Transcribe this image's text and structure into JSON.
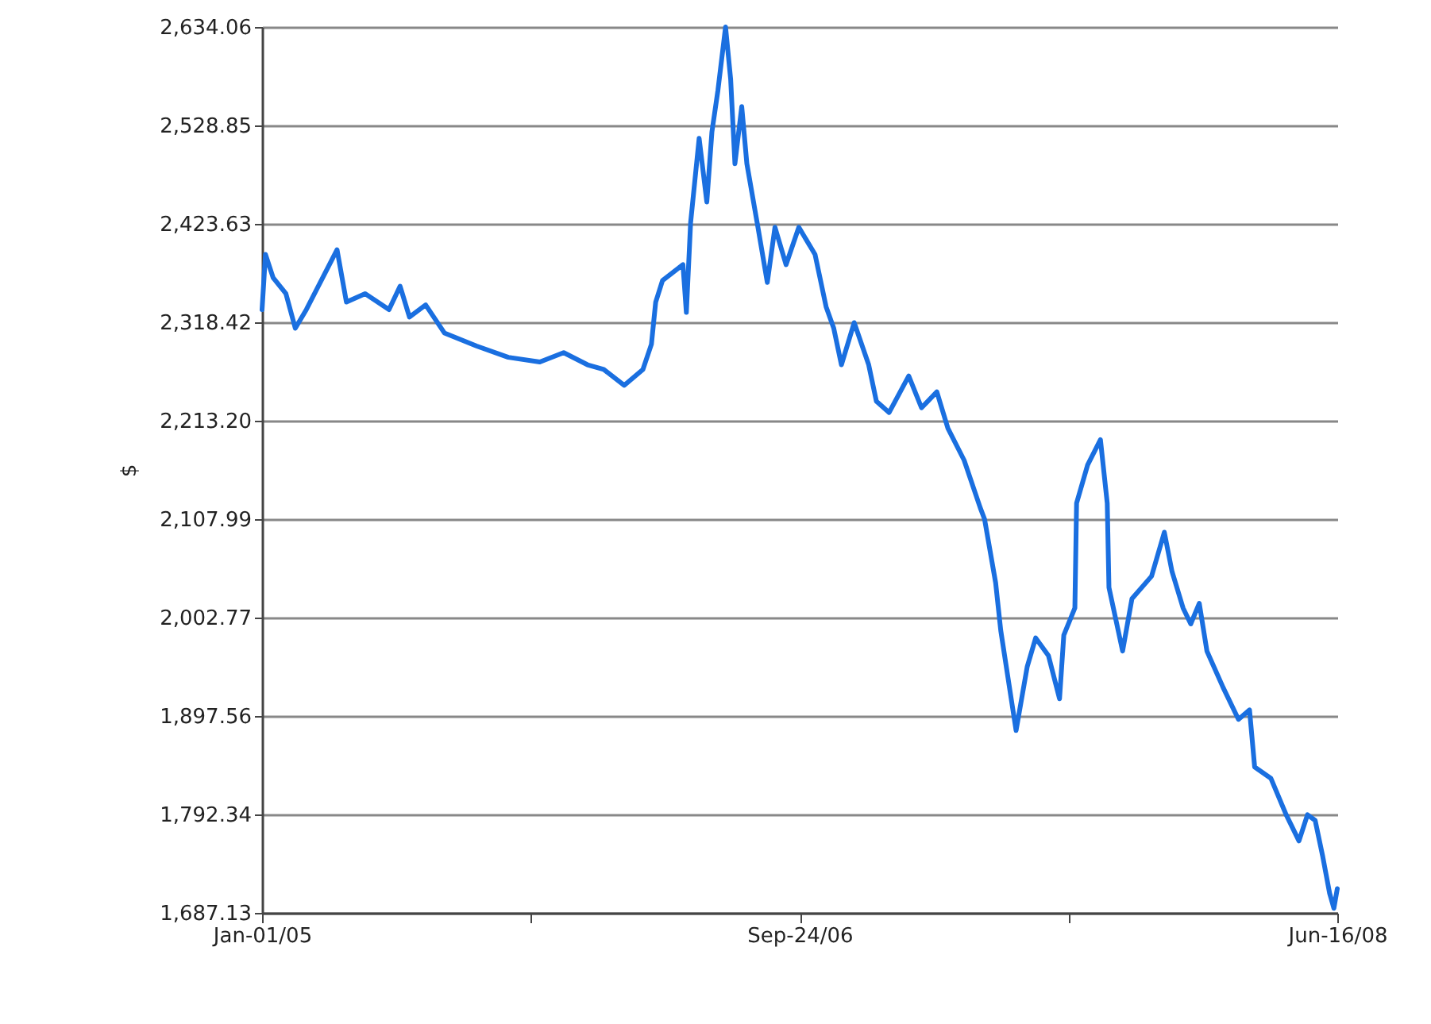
{
  "chart_data": {
    "type": "line",
    "ylabel": "$",
    "x": [
      "2005-01-01",
      "2005-01-05",
      "2005-01-14",
      "2005-01-29",
      "2005-02-09",
      "2005-02-22",
      "2005-03-30",
      "2005-04-10",
      "2005-05-02",
      "2005-05-30",
      "2005-06-12",
      "2005-06-23",
      "2005-07-12",
      "2005-08-03",
      "2005-09-10",
      "2005-10-17",
      "2005-11-23",
      "2005-12-21",
      "2006-01-18",
      "2006-02-06",
      "2006-03-02",
      "2006-03-24",
      "2006-04-03",
      "2006-04-08",
      "2006-04-16",
      "2006-05-10",
      "2006-05-14",
      "2006-05-19",
      "2006-05-29",
      "2006-06-07",
      "2006-06-13",
      "2006-06-20",
      "2006-06-29",
      "2006-07-05",
      "2006-07-10",
      "2006-07-18",
      "2006-07-24",
      "2006-08-06",
      "2006-08-17",
      "2006-08-26",
      "2006-09-08",
      "2006-09-23",
      "2006-10-12",
      "2006-10-25",
      "2006-11-03",
      "2006-11-12",
      "2006-11-27",
      "2006-12-14",
      "2006-12-23",
      "2007-01-07",
      "2007-01-30",
      "2007-02-14",
      "2007-03-04",
      "2007-03-17",
      "2007-04-05",
      "2007-04-24",
      "2007-04-29",
      "2007-05-12",
      "2007-05-18",
      "2007-06-05",
      "2007-06-18",
      "2007-06-28",
      "2007-07-13",
      "2007-07-26",
      "2007-07-31",
      "2007-08-13",
      "2007-08-15",
      "2007-08-28",
      "2007-09-12",
      "2007-09-20",
      "2007-09-22",
      "2007-10-08",
      "2007-10-19",
      "2007-11-11",
      "2007-11-26",
      "2007-12-05",
      "2007-12-18",
      "2007-12-27",
      "2008-01-06",
      "2008-01-15",
      "2008-02-03",
      "2008-02-21",
      "2008-03-05",
      "2008-03-11",
      "2008-03-30",
      "2008-04-17",
      "2008-05-02",
      "2008-05-12",
      "2008-05-21",
      "2008-05-30",
      "2008-06-07",
      "2008-06-12",
      "2008-06-16"
    ],
    "series": [
      {
        "color": "#1a6fe0",
        "values": [
          2332,
          2391,
          2366,
          2349,
          2312,
          2332,
          2396,
          2340,
          2349,
          2332,
          2357,
          2324,
          2337,
          2307,
          2293,
          2281,
          2276,
          2286,
          2273,
          2268,
          2251,
          2268,
          2295,
          2340,
          2363,
          2380,
          2329,
          2425,
          2515,
          2447,
          2522,
          2566,
          2634,
          2578,
          2488,
          2549,
          2488,
          2420,
          2361,
          2420,
          2380,
          2420,
          2391,
          2335,
          2312,
          2273,
          2318,
          2273,
          2234,
          2222,
          2261,
          2227,
          2244,
          2205,
          2171,
          2120,
          2108,
          2040,
          1989,
          1882,
          1950,
          1981,
          1962,
          1916,
          1984,
          2013,
          2125,
          2166,
          2193,
          2125,
          2035,
          1967,
          2023,
          2047,
          2094,
          2052,
          2013,
          1996,
          2018,
          1967,
          1928,
          1894,
          1904,
          1843,
          1831,
          1792,
          1764,
          1792,
          1786,
          1747,
          1708,
          1692,
          1713
        ]
      }
    ],
    "xlim": [
      "2005-01-01",
      "2008-06-16"
    ],
    "xticks": [
      {
        "value": "2005-01-01",
        "label": "Jan-01/05"
      },
      {
        "value": "2005-11-12T12:00",
        "label": null
      },
      {
        "value": "2006-09-24",
        "label": "Sep-24/06"
      },
      {
        "value": "2007-08-05T12:00",
        "label": null
      },
      {
        "value": "2008-06-16",
        "label": "Jun-16/08"
      }
    ],
    "ylim": [
      1687.13,
      2634.06
    ],
    "yticks": [
      {
        "value": 1687.13,
        "label": "1,687.13"
      },
      {
        "value": 1792.34,
        "label": "1,792.34"
      },
      {
        "value": 1897.56,
        "label": "1,897.56"
      },
      {
        "value": 2002.77,
        "label": "2,002.77"
      },
      {
        "value": 2107.99,
        "label": "2,107.99"
      },
      {
        "value": 2213.2,
        "label": "2,213.20"
      },
      {
        "value": 2318.42,
        "label": "2,318.42"
      },
      {
        "value": 2423.63,
        "label": "2,423.63"
      },
      {
        "value": 2528.85,
        "label": "2,528.85"
      },
      {
        "value": 2634.06,
        "label": "2,634.06"
      }
    ],
    "grid": "y"
  }
}
